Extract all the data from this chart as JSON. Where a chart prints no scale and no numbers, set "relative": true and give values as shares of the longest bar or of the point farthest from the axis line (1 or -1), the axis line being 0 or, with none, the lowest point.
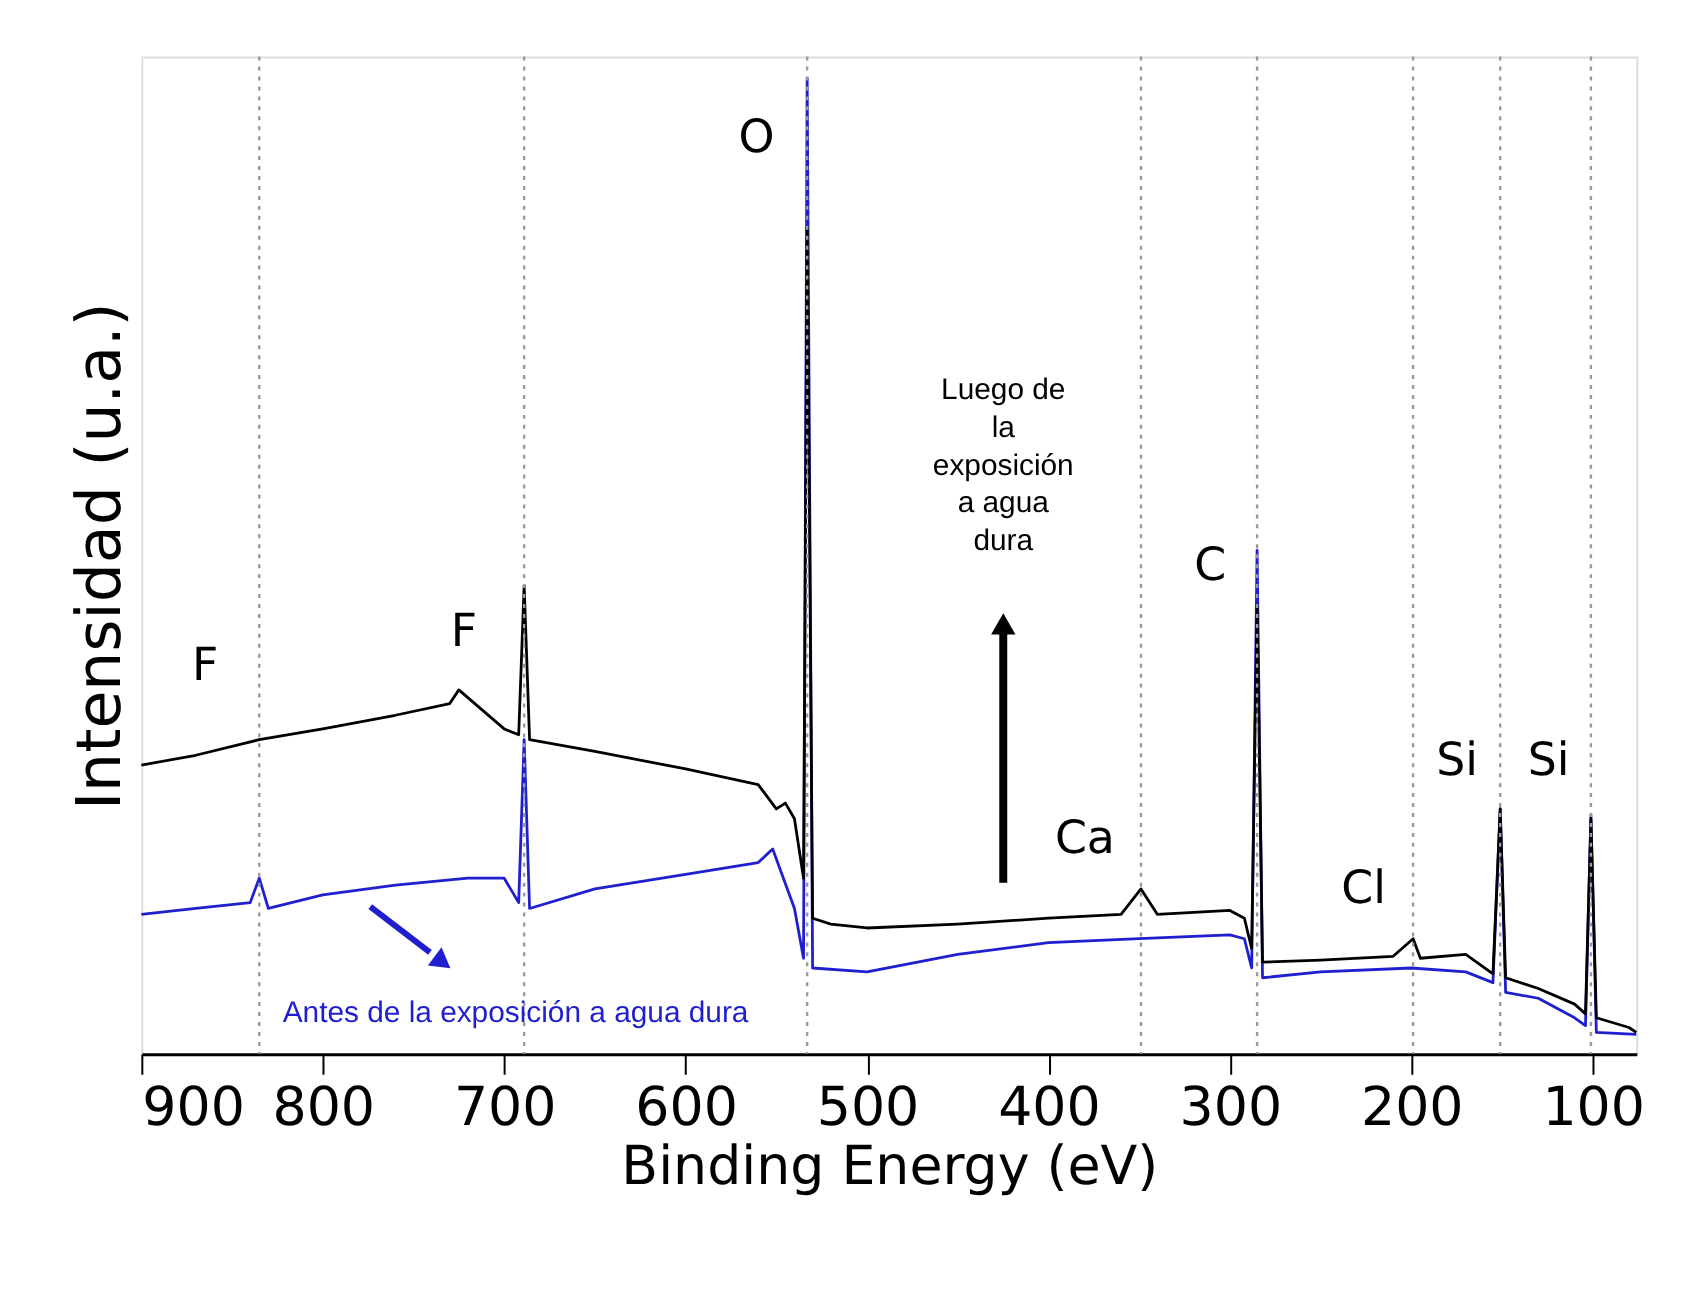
{
  "chart_data": {
    "type": "line",
    "relative": true,
    "xlabel": "Binding Energy (eV)",
    "ylabel": "Intensidad (u.a.)",
    "xlim": [
      900,
      76
    ],
    "xticks": [
      900,
      800,
      700,
      600,
      500,
      400,
      300,
      200,
      100
    ],
    "grid": false,
    "line_style": "solid",
    "marker": "none",
    "series": [
      {
        "color": "#000000",
        "x": [
          900,
          870,
          835,
          800,
          760,
          730,
          725,
          700,
          692,
          689,
          686,
          650,
          600,
          560,
          550,
          545,
          540,
          535,
          533,
          530,
          520,
          500,
          450,
          400,
          360,
          349,
          340,
          300,
          292,
          288,
          285,
          282,
          250,
          210,
          199,
          195,
          170,
          155,
          151,
          148,
          130,
          110,
          104,
          101,
          98,
          80,
          76
        ],
        "values": [
          0.296,
          0.306,
          0.322,
          0.333,
          0.347,
          0.359,
          0.373,
          0.333,
          0.327,
          0.48,
          0.322,
          0.31,
          0.292,
          0.276,
          0.251,
          0.257,
          0.241,
          0.18,
          0.847,
          0.139,
          0.133,
          0.129,
          0.133,
          0.139,
          0.143,
          0.169,
          0.143,
          0.147,
          0.139,
          0.108,
          0.46,
          0.094,
          0.096,
          0.1,
          0.118,
          0.098,
          0.102,
          0.082,
          0.251,
          0.078,
          0.067,
          0.051,
          0.041,
          0.241,
          0.037,
          0.027,
          0.022
        ]
      },
      {
        "color": "#1f1fd0",
        "x": [
          900,
          870,
          840,
          835,
          830,
          800,
          760,
          720,
          700,
          692,
          689,
          686,
          650,
          600,
          560,
          552,
          540,
          535,
          533,
          530,
          500,
          450,
          400,
          350,
          300,
          292,
          288,
          285,
          282,
          250,
          200,
          170,
          155,
          151,
          148,
          130,
          110,
          104,
          101,
          98,
          76
        ],
        "values": [
          0.143,
          0.149,
          0.155,
          0.18,
          0.149,
          0.163,
          0.173,
          0.18,
          0.18,
          0.155,
          0.322,
          0.149,
          0.169,
          0.184,
          0.196,
          0.21,
          0.149,
          0.098,
          1.0,
          0.088,
          0.084,
          0.102,
          0.114,
          0.118,
          0.122,
          0.118,
          0.088,
          0.516,
          0.078,
          0.084,
          0.088,
          0.084,
          0.073,
          0.251,
          0.063,
          0.057,
          0.037,
          0.029,
          0.245,
          0.022,
          0.02
        ]
      }
    ],
    "ref_lines": [
      {
        "axis": "x",
        "value": 835,
        "color": "#999999",
        "line_style": "dotted"
      },
      {
        "axis": "x",
        "value": 689,
        "color": "#999999",
        "line_style": "dotted"
      },
      {
        "axis": "x",
        "value": 533,
        "color": "#999999",
        "line_style": "dotted"
      },
      {
        "axis": "x",
        "value": 349,
        "color": "#999999",
        "line_style": "dotted"
      },
      {
        "axis": "x",
        "value": 285,
        "color": "#999999",
        "line_style": "dotted"
      },
      {
        "axis": "x",
        "value": 199,
        "color": "#999999",
        "line_style": "dotted"
      },
      {
        "axis": "x",
        "value": 151,
        "color": "#999999",
        "line_style": "dotted"
      },
      {
        "axis": "x",
        "value": 101,
        "color": "#999999",
        "line_style": "dotted"
      }
    ],
    "annotations": [
      "O",
      "F",
      "F",
      "Ca",
      "C",
      "Cl",
      "Si",
      "Si",
      "Luego de\nla\nexposición\na agua\ndura",
      "Antes de la exposición a agua dura"
    ]
  }
}
